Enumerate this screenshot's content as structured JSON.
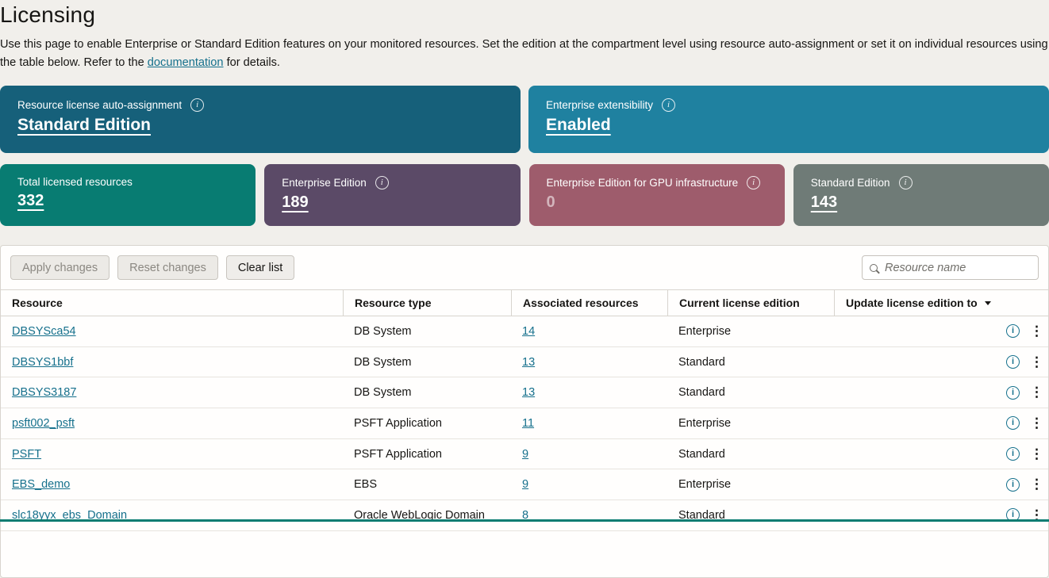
{
  "page": {
    "title": "Licensing",
    "description_before_link": "Use this page to enable Enterprise or Standard Edition features on your monitored resources. Set the edition at the compartment level using resource auto-assignment or set it on individual resources using the table below. Refer to the ",
    "description_link": "documentation",
    "description_after_link": " for details."
  },
  "colors": {
    "link": "#15708c",
    "bottom_accent": "#0b7c72"
  },
  "summary_cards_large": [
    {
      "label": "Resource license auto-assignment",
      "value": "Standard Edition",
      "color": "#16607a",
      "has_info": true,
      "dimmed": false
    },
    {
      "label": "Enterprise extensibility",
      "value": "Enabled",
      "color": "#1f81a0",
      "has_info": true,
      "dimmed": false
    }
  ],
  "summary_cards_small": [
    {
      "label": "Total licensed resources",
      "value": "332",
      "color": "#087c72",
      "has_info": false,
      "dimmed": false
    },
    {
      "label": "Enterprise Edition",
      "value": "189",
      "color": "#5b4a67",
      "has_info": true,
      "dimmed": false
    },
    {
      "label": "Enterprise Edition for GPU infrastructure",
      "value": "0",
      "color": "#9e5c6c",
      "has_info": true,
      "dimmed": true
    },
    {
      "label": "Standard Edition",
      "value": "143",
      "color": "#6f7b77",
      "has_info": true,
      "dimmed": false
    }
  ],
  "toolbar": {
    "apply_label": "Apply changes",
    "reset_label": "Reset changes",
    "clear_label": "Clear list",
    "search_placeholder": "Resource name"
  },
  "table": {
    "columns": [
      "Resource",
      "Resource type",
      "Associated resources",
      "Current license edition",
      "Update license edition to"
    ],
    "rows": [
      {
        "resource": "DBSYSca54",
        "type": "DB System",
        "associated": "14",
        "edition": "Enterprise"
      },
      {
        "resource": "DBSYS1bbf",
        "type": "DB System",
        "associated": "13",
        "edition": "Standard"
      },
      {
        "resource": "DBSYS3187",
        "type": "DB System",
        "associated": "13",
        "edition": "Standard"
      },
      {
        "resource": "psft002_psft",
        "type": "PSFT Application",
        "associated": "11",
        "edition": "Enterprise"
      },
      {
        "resource": "PSFT",
        "type": "PSFT Application",
        "associated": "9",
        "edition": "Standard"
      },
      {
        "resource": "EBS_demo",
        "type": "EBS",
        "associated": "9",
        "edition": "Enterprise"
      },
      {
        "resource": "slc18yyx_ebs_Domain",
        "type": "Oracle WebLogic Domain",
        "associated": "8",
        "edition": "Standard"
      }
    ]
  }
}
